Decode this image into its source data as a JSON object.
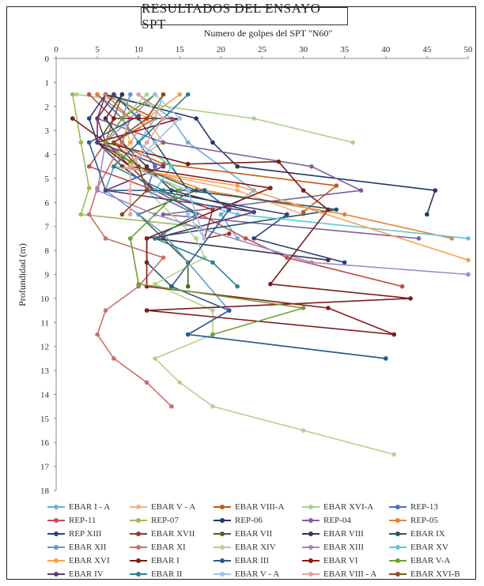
{
  "chart_data": {
    "type": "line",
    "title": "RESULTADOS DEL ENSAYO SPT",
    "xlabel": "Numero de golpes del SPT \"N60\"",
    "ylabel": "Profundidad (m)",
    "xlim": [
      0,
      50
    ],
    "ylim": [
      0,
      18
    ],
    "x_ticks": [
      "0",
      "5",
      "10",
      "15",
      "20",
      "25",
      "30",
      "35",
      "40",
      "45",
      "50"
    ],
    "y_ticks": [
      "0",
      "1",
      "2",
      "3",
      "4",
      "5",
      "6",
      "7",
      "8",
      "9",
      "10",
      "11",
      "12",
      "13",
      "14",
      "15",
      "16",
      "17",
      "18"
    ],
    "x_axis_position": "top",
    "y_axis_inverted": true,
    "grid": false,
    "legend_position": "bottom",
    "series": [
      {
        "name": "EBAR I - A",
        "color": "#6baed6",
        "points": [
          [
            10,
            1.5
          ],
          [
            14,
            2.5
          ],
          [
            16,
            3.5
          ],
          [
            24,
            5.5
          ],
          [
            20,
            6.5
          ],
          [
            22,
            7.5
          ]
        ]
      },
      {
        "name": "EBAR V - A",
        "color": "#f4b183",
        "points": [
          [
            7,
            1.5
          ],
          [
            11,
            2.5
          ],
          [
            13,
            3.5
          ],
          [
            8,
            4.5
          ],
          [
            22,
            5.5
          ],
          [
            30,
            6.5
          ]
        ]
      },
      {
        "name": "EBAR VIII-A",
        "color": "#c55a11",
        "points": [
          [
            6,
            1.5
          ],
          [
            12,
            2.5
          ],
          [
            7,
            3.5
          ],
          [
            13,
            4.4
          ],
          [
            34,
            5.3
          ],
          [
            30,
            6.4
          ]
        ]
      },
      {
        "name": "EBAR XVI-A",
        "color": "#a9d18e",
        "points": [
          [
            2.5,
            1.5
          ],
          [
            24,
            2.5
          ],
          [
            36,
            3.5
          ]
        ]
      },
      {
        "name": "REP-13",
        "color": "#4472c4",
        "points": [
          [
            5,
            1.5
          ],
          [
            8,
            2.5
          ],
          [
            10,
            3.5
          ],
          [
            12,
            4.5
          ],
          [
            11,
            5.5
          ],
          [
            17,
            6.5
          ]
        ]
      },
      {
        "name": "REP-11",
        "color": "#c0504d",
        "points": [
          [
            4,
            1.5
          ],
          [
            7,
            2.5
          ],
          [
            6,
            3.5
          ],
          [
            4,
            4.5
          ],
          [
            12,
            5.5
          ],
          [
            23,
            7.5
          ],
          [
            28,
            8.3
          ],
          [
            42,
            9.5
          ]
        ]
      },
      {
        "name": "REP-07",
        "color": "#9bbb59",
        "points": [
          [
            2,
            1.5
          ],
          [
            3,
            3.5
          ],
          [
            4,
            5.4
          ],
          [
            3,
            6.5
          ],
          [
            17,
            7
          ]
        ]
      },
      {
        "name": "REP-06",
        "color": "#1f3864",
        "points": [
          [
            6,
            1.5
          ],
          [
            17,
            2.5
          ],
          [
            19,
            3.5
          ],
          [
            22,
            4.5
          ],
          [
            46,
            5.5
          ],
          [
            45,
            6.5
          ]
        ]
      },
      {
        "name": "REP-04",
        "color": "#7f5f9f",
        "points": [
          [
            7,
            1.5
          ],
          [
            5,
            2.5
          ],
          [
            13,
            3.5
          ],
          [
            31,
            4.5
          ],
          [
            37,
            5.5
          ],
          [
            13,
            6.5
          ],
          [
            44,
            7.5
          ]
        ]
      },
      {
        "name": "REP-05",
        "color": "#ed7d31",
        "points": [
          [
            5,
            1.5
          ],
          [
            9,
            2.5
          ],
          [
            8,
            3.5
          ],
          [
            10,
            4.5
          ],
          [
            18,
            5.5
          ],
          [
            35,
            6.5
          ],
          [
            48,
            7.5
          ]
        ]
      },
      {
        "name": "REP XIII",
        "color": "#264478",
        "points": [
          [
            6,
            1.5
          ],
          [
            4,
            2.5
          ],
          [
            5,
            3.5
          ],
          [
            8,
            4.5
          ],
          [
            12,
            5.5
          ],
          [
            28,
            6.5
          ],
          [
            24,
            7.5
          ],
          [
            35,
            8.5
          ]
        ]
      },
      {
        "name": "EBAR XVII",
        "color": "#943634",
        "points": [
          [
            6,
            1.5
          ],
          [
            5,
            2.5
          ],
          [
            6,
            3.5
          ],
          [
            9,
            4.5
          ],
          [
            12,
            5.5
          ],
          [
            19,
            6.3
          ],
          [
            18,
            7.5
          ],
          [
            21,
            7.3
          ]
        ]
      },
      {
        "name": "EBAR VII",
        "color": "#4f6228",
        "points": [
          [
            8,
            1.5
          ],
          [
            7,
            2.5
          ],
          [
            5,
            3.5
          ],
          [
            10,
            4.5
          ],
          [
            17,
            5.5
          ],
          [
            10,
            6.5
          ],
          [
            13,
            7.5
          ],
          [
            16,
            8.5
          ],
          [
            16,
            9.5
          ]
        ]
      },
      {
        "name": "EBAR VIII",
        "color": "#3f3151",
        "points": [
          [
            8,
            1.5
          ],
          [
            6,
            2.5
          ],
          [
            8,
            3.5
          ],
          [
            11,
            4.5
          ],
          [
            14,
            5.5
          ],
          [
            24,
            6.4
          ],
          [
            12,
            7.5
          ],
          [
            33,
            8.4
          ]
        ]
      },
      {
        "name": "EBAR IX",
        "color": "#215867",
        "points": [
          [
            7,
            1.5
          ],
          [
            10,
            2.5
          ],
          [
            12,
            3.5
          ],
          [
            14,
            4.5
          ],
          [
            16,
            5.5
          ],
          [
            34,
            6.3
          ],
          [
            11,
            7.5
          ],
          [
            11,
            8.5
          ],
          [
            14,
            9.5
          ]
        ]
      },
      {
        "name": "EBAR XII",
        "color": "#5b9bd5",
        "points": [
          [
            9,
            1.5
          ],
          [
            8,
            2.5
          ],
          [
            10,
            3.5
          ],
          [
            7,
            4.5
          ],
          [
            6,
            5.5
          ],
          [
            10,
            6.5
          ],
          [
            13,
            7.3
          ],
          [
            21,
            10.5
          ],
          [
            16,
            11.5
          ],
          [
            40,
            12.5
          ]
        ]
      },
      {
        "name": "EBAR XI",
        "color": "#c9706b",
        "points": [
          [
            6,
            1.5
          ],
          [
            9,
            2.5
          ],
          [
            8,
            3.5
          ],
          [
            5,
            5.4
          ],
          [
            4,
            6.5
          ],
          [
            6,
            7.5
          ],
          [
            13,
            8.3
          ],
          [
            10,
            9.5
          ],
          [
            6,
            10.5
          ],
          [
            5,
            11.5
          ],
          [
            7,
            12.5
          ],
          [
            11,
            13.5
          ],
          [
            14,
            14.5
          ]
        ]
      },
      {
        "name": "EBAR XIV",
        "color": "#b7d08f",
        "points": [
          [
            11,
            1.5
          ],
          [
            8,
            2.5
          ],
          [
            9,
            3.5
          ],
          [
            11,
            5.5
          ],
          [
            17,
            7.5
          ],
          [
            18,
            8.3
          ],
          [
            12,
            9.4
          ],
          [
            19,
            10.5
          ],
          [
            19,
            11.5
          ],
          [
            12,
            12.5
          ],
          [
            15,
            13.5
          ],
          [
            19,
            14.5
          ],
          [
            30,
            15.5
          ],
          [
            41,
            16.5
          ]
        ]
      },
      {
        "name": "EBAR XIII",
        "color": "#a288c4",
        "points": [
          [
            12,
            1.5
          ],
          [
            6,
            3.5
          ],
          [
            5,
            5.5
          ],
          [
            12,
            6.5
          ],
          [
            31,
            8.5
          ],
          [
            50,
            9.0
          ]
        ]
      },
      {
        "name": "EBAR XV",
        "color": "#5bc8d6",
        "points": [
          [
            13,
            1.5
          ],
          [
            12,
            2.5
          ],
          [
            10,
            3.5
          ],
          [
            14,
            4.5
          ],
          [
            12,
            5.5
          ],
          [
            22,
            6.5
          ],
          [
            50,
            7.5
          ]
        ]
      },
      {
        "name": "EBAR XVI",
        "color": "#f6a04d",
        "points": [
          [
            15,
            1.5
          ],
          [
            11,
            2.5
          ],
          [
            9,
            3.5
          ],
          [
            7,
            4.5
          ],
          [
            22,
            5.3
          ],
          [
            50,
            8.4
          ]
        ]
      },
      {
        "name": "EBAR I",
        "color": "#7b1c1c",
        "points": [
          [
            2,
            2.5
          ],
          [
            6,
            3.5
          ],
          [
            16,
            4.4
          ],
          [
            27,
            4.3
          ],
          [
            30,
            5.5
          ],
          [
            33,
            6.3
          ],
          [
            26,
            9.4
          ],
          [
            43,
            10.0
          ],
          [
            11,
            10.5
          ],
          [
            41,
            11.5
          ]
        ]
      },
      {
        "name": "EBAR III",
        "color": "#2e5a8a",
        "points": [
          [
            10,
            2.4
          ],
          [
            4,
            3.5
          ],
          [
            6,
            5.5
          ],
          [
            18,
            5.5
          ],
          [
            21,
            6.3
          ],
          [
            14,
            9.5
          ],
          [
            21,
            10.5
          ],
          [
            16,
            11.5
          ],
          [
            40,
            12.5
          ]
        ]
      },
      {
        "name": "EBAR VI",
        "color": "#8b1a1a",
        "points": [
          [
            7,
            2.5
          ],
          [
            15,
            2.5
          ],
          [
            5,
            3.5
          ],
          [
            9,
            4.5
          ],
          [
            26,
            5.4
          ],
          [
            11,
            7.5
          ],
          [
            11,
            8.5
          ],
          [
            11,
            9.5
          ],
          [
            33,
            10.4
          ],
          [
            41,
            11.5
          ]
        ]
      },
      {
        "name": "EBAR V-A",
        "color": "#70a030",
        "points": [
          [
            12,
            1.5
          ],
          [
            8,
            2.5
          ],
          [
            6,
            3.5
          ],
          [
            9,
            4.3
          ],
          [
            15,
            5.5
          ],
          [
            9,
            7.5
          ],
          [
            10,
            9.4
          ],
          [
            30,
            10.4
          ],
          [
            19,
            11.5
          ]
        ]
      },
      {
        "name": "EBAR IV",
        "color": "#5e3a7a",
        "points": [
          [
            7,
            1.5
          ],
          [
            5,
            2.5
          ],
          [
            5,
            3.5
          ],
          [
            13,
            4.5
          ],
          [
            6,
            5.5
          ],
          [
            24,
            6.4
          ],
          [
            12,
            7.5
          ]
        ]
      },
      {
        "name": "EBAR II",
        "color": "#2c8090",
        "points": [
          [
            16,
            1.5
          ],
          [
            13,
            2.5
          ],
          [
            10,
            3.5
          ],
          [
            7,
            4.5
          ],
          [
            13,
            5.5
          ],
          [
            17,
            6.5
          ],
          [
            12,
            7.5
          ],
          [
            19,
            8.5
          ],
          [
            22,
            9.5
          ]
        ]
      },
      {
        "name": "EBAR V - A",
        "color": "#9dc3e6",
        "points": [
          [
            12,
            1.5
          ],
          [
            15,
            2.5
          ],
          [
            12,
            3.5
          ],
          [
            9,
            4.5
          ],
          [
            16,
            5.5
          ],
          [
            18,
            7.5
          ],
          [
            16,
            6.5
          ]
        ]
      },
      {
        "name": "EBAR VIII - A",
        "color": "#e6a0a0",
        "points": [
          [
            10,
            1.5
          ],
          [
            13,
            2.5
          ],
          [
            11,
            3.5
          ],
          [
            9,
            4.5
          ],
          [
            9,
            5.5
          ],
          [
            9,
            6.5
          ]
        ]
      },
      {
        "name": "EBAR XVI-B",
        "color": "#8c4a1f",
        "points": [
          [
            13,
            1.5
          ],
          [
            11,
            2.5
          ],
          [
            7,
            3.5
          ],
          [
            10,
            4.5
          ],
          [
            11,
            5.5
          ],
          [
            8,
            6.5
          ]
        ]
      }
    ]
  }
}
